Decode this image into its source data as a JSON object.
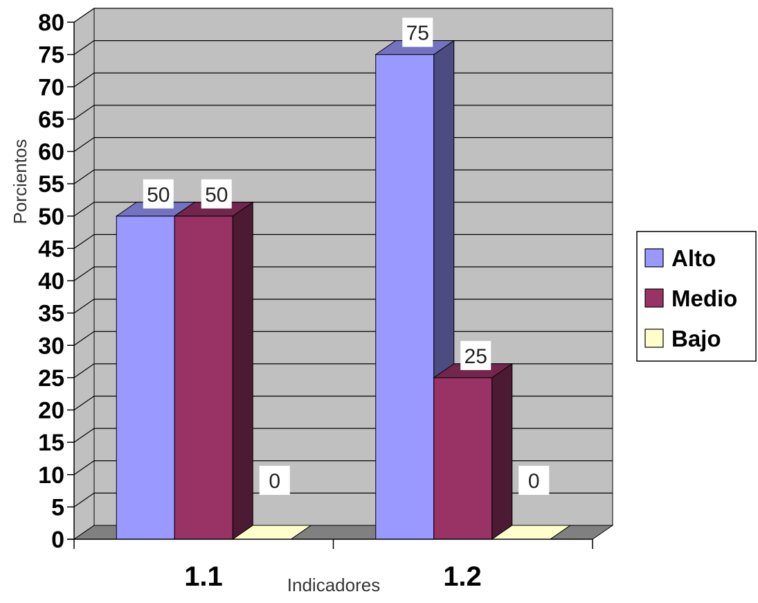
{
  "chart_data": {
    "type": "bar",
    "title": "",
    "xlabel": "Indicadores",
    "ylabel": "Porcientos",
    "categories": [
      "1.1",
      "1.2"
    ],
    "series": [
      {
        "name": "Alto",
        "values": [
          50,
          75
        ],
        "color": "#9999ff",
        "side_color": "#4c4c80",
        "top_color": "#7373c0"
      },
      {
        "name": "Medio",
        "values": [
          50,
          25
        ],
        "color": "#993366",
        "side_color": "#4d1a33",
        "top_color": "#73264d"
      },
      {
        "name": "Bajo",
        "values": [
          0,
          0
        ],
        "color": "#ffffcc",
        "side_color": "#808066",
        "top_color": "#c0c099"
      }
    ],
    "data_labels": [
      [
        "50",
        "75"
      ],
      [
        "50",
        "25"
      ],
      [
        "0",
        "0"
      ]
    ],
    "ylim": [
      0,
      80
    ],
    "yticks": [
      "0",
      "5",
      "10",
      "15",
      "20",
      "25",
      "30",
      "35",
      "40",
      "45",
      "50",
      "55",
      "60",
      "65",
      "70",
      "75",
      "80"
    ],
    "grid": true,
    "legend_position": "right",
    "wall_color": "#c0c0c0",
    "floor_color": "#808080",
    "gridline_color": "#000000"
  }
}
